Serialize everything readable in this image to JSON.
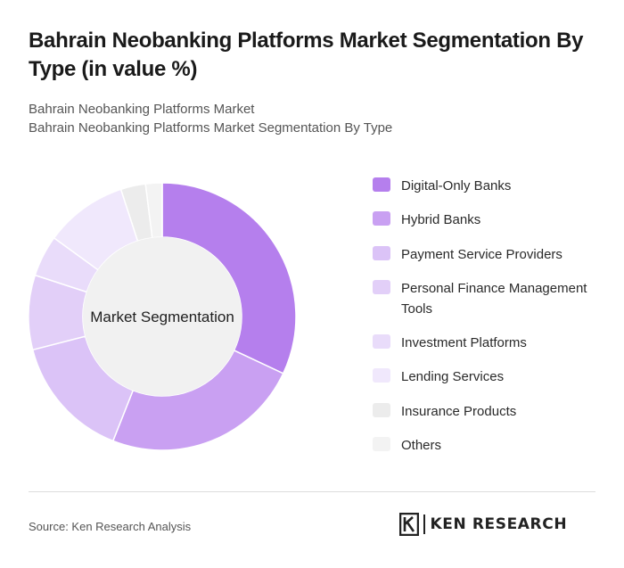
{
  "title": "Bahrain Neobanking Platforms Market Segmentation By Type (in value %)",
  "subtitle_line1": "Bahrain Neobanking Platforms Market",
  "subtitle_line2": "Bahrain Neobanking Platforms Market Segmentation By Type",
  "chart_data": {
    "type": "pie",
    "variant": "donut",
    "center_label": "Market Segmentation",
    "categories": [
      "Digital-Only Banks",
      "Hybrid Banks",
      "Payment Service Providers",
      "Personal Finance Management Tools",
      "Investment Platforms",
      "Lending Services",
      "Insurance Products",
      "Others"
    ],
    "values": [
      32,
      24,
      15,
      9,
      5,
      10,
      3,
      2
    ],
    "colors": [
      "#b57fed",
      "#c9a0f2",
      "#dbc3f7",
      "#e2cff8",
      "#e9dcfa",
      "#f0e8fc",
      "#ececec",
      "#f3f3f3"
    ],
    "legend_position": "right"
  },
  "footer": {
    "source": "Source: Ken Research Analysis",
    "logo_text": "KEN RESEARCH"
  }
}
